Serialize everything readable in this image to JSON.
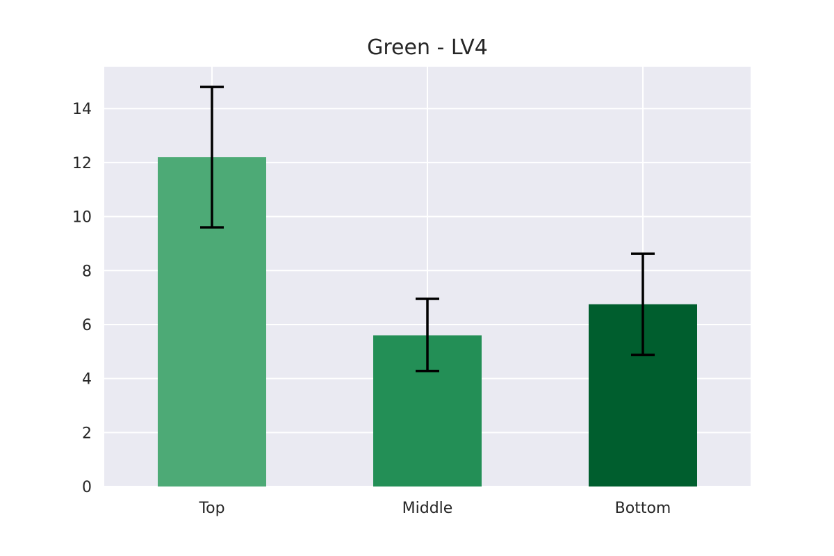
{
  "chart_data": {
    "type": "bar",
    "title": "Green - LV4",
    "xlabel": "",
    "ylabel": "",
    "categories": [
      "Top",
      "Middle",
      "Bottom"
    ],
    "values": [
      12.2,
      5.6,
      6.75
    ],
    "error_low": [
      9.6,
      4.28,
      4.88
    ],
    "error_high": [
      14.8,
      6.95,
      8.62
    ],
    "bar_colors": [
      "#4daa76",
      "#238f56",
      "#005e2e"
    ],
    "ylim": [
      0,
      15.55
    ],
    "yticks": [
      0,
      2,
      4,
      6,
      8,
      10,
      12,
      14
    ],
    "ytick_labels": [
      "0",
      "2",
      "4",
      "6",
      "8",
      "10",
      "12",
      "14"
    ],
    "grid": true,
    "background": "#eaeaf2"
  }
}
